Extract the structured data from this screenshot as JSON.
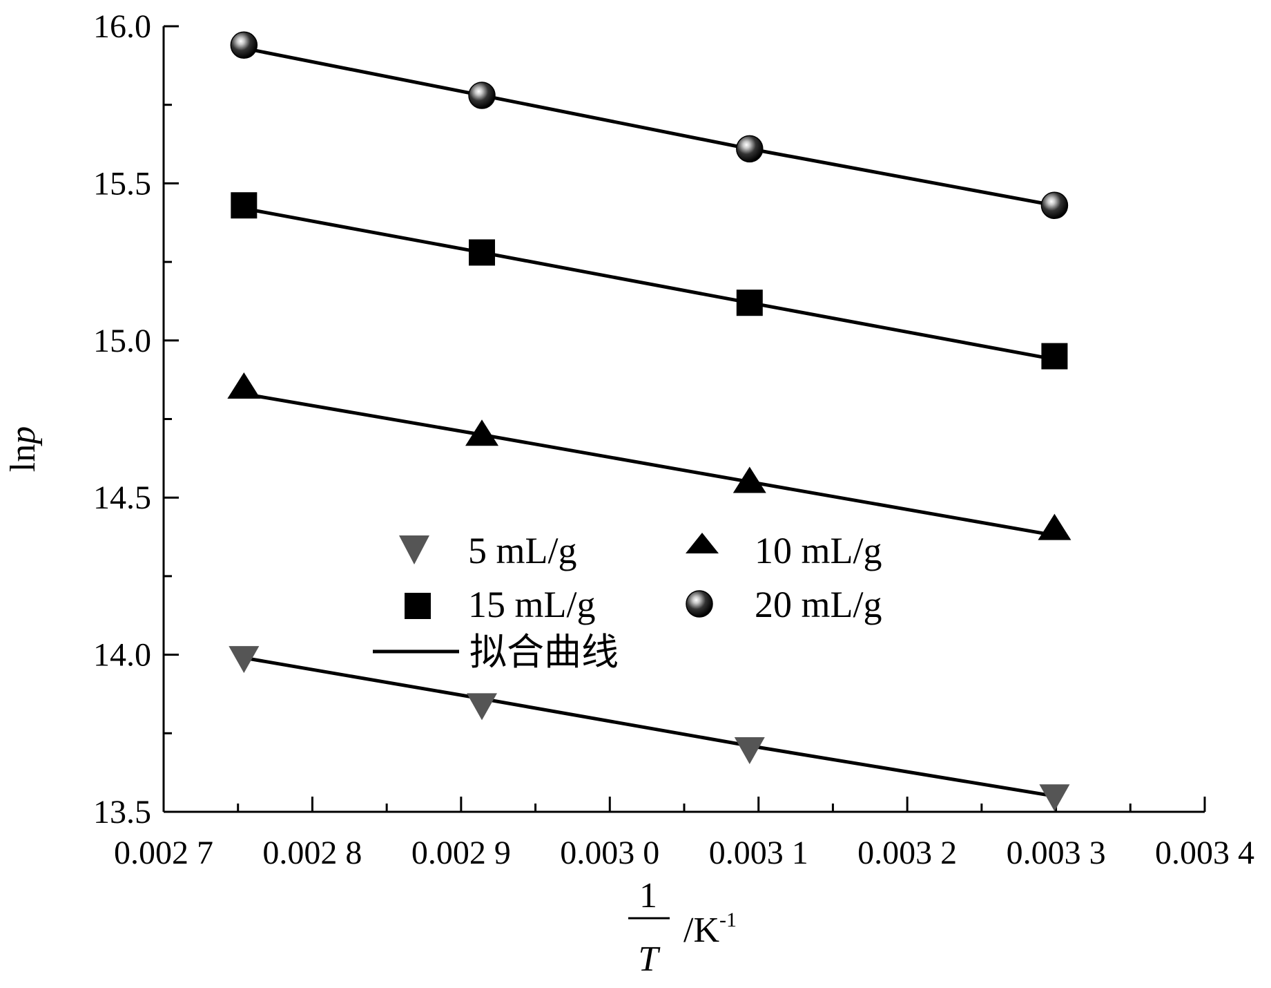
{
  "chart_data": {
    "type": "scatter",
    "xlabel": {
      "numerator": "1",
      "denominator": "T",
      "unit": "/K",
      "exponent": "-1"
    },
    "ylabel": {
      "prefix": "ln",
      "var": "p"
    },
    "xlim": [
      0.0027,
      0.0034
    ],
    "ylim": [
      13.5,
      16.0
    ],
    "x_ticks": [
      {
        "value": 0.0027,
        "label": "0.002 7"
      },
      {
        "value": 0.0028,
        "label": "0.002 8"
      },
      {
        "value": 0.0029,
        "label": "0.002 9"
      },
      {
        "value": 0.003,
        "label": "0.003 0"
      },
      {
        "value": 0.0031,
        "label": "0.003 1"
      },
      {
        "value": 0.0032,
        "label": "0.003 2"
      },
      {
        "value": 0.0033,
        "label": "0.003 3"
      },
      {
        "value": 0.0034,
        "label": "0.003 4"
      }
    ],
    "y_ticks": [
      {
        "value": 13.5,
        "label": "13.5"
      },
      {
        "value": 14.0,
        "label": "14.0"
      },
      {
        "value": 14.5,
        "label": "14.5"
      },
      {
        "value": 15.0,
        "label": "15.0"
      },
      {
        "value": 15.5,
        "label": "15.5"
      },
      {
        "value": 16.0,
        "label": "16.0"
      }
    ],
    "x": [
      0.002754,
      0.002914,
      0.003094,
      0.003299
    ],
    "series": [
      {
        "name": "5 mL/g",
        "marker": "triangle-down",
        "color": "#555555",
        "values": [
          13.99,
          13.84,
          13.7,
          13.55
        ],
        "fit": [
          13.99,
          13.86,
          13.71,
          13.55
        ]
      },
      {
        "name": "10 mL/g",
        "marker": "triangle-up",
        "color": "#000000",
        "values": [
          14.85,
          14.7,
          14.55,
          14.4
        ],
        "fit": [
          14.83,
          14.7,
          14.55,
          14.38
        ]
      },
      {
        "name": "15 mL/g",
        "marker": "square",
        "color": "#000000",
        "values": [
          15.43,
          15.28,
          15.12,
          14.95
        ],
        "fit": [
          15.42,
          15.28,
          15.12,
          14.94
        ]
      },
      {
        "name": "20 mL/g",
        "marker": "sphere",
        "color": "#000000",
        "values": [
          15.94,
          15.78,
          15.61,
          15.43
        ],
        "fit": [
          15.93,
          15.78,
          15.61,
          15.43
        ]
      }
    ],
    "fit_label": "拟合曲线",
    "grid": false,
    "legend_position": "center"
  }
}
